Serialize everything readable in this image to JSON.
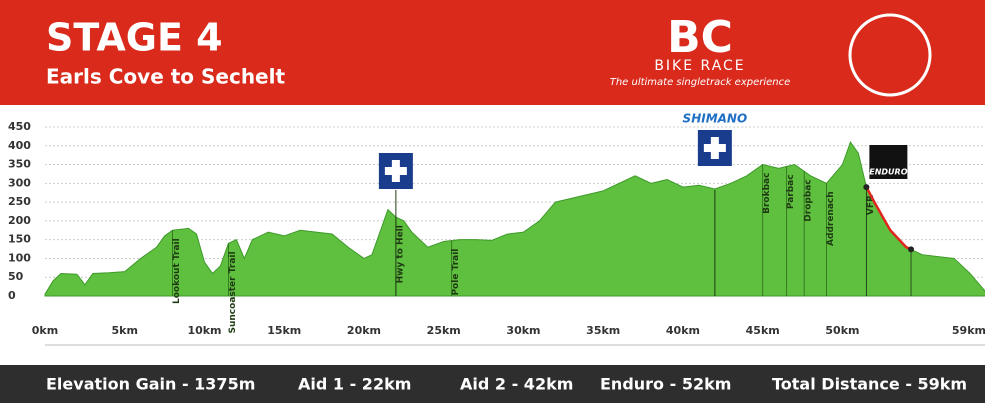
{
  "header": {
    "title": "STAGE 4",
    "subtitle": "Earls Cove to Sechelt",
    "logo": "BC",
    "logo_sub": "BIKE RACE",
    "tagline": "The ultimate singletrack experience"
  },
  "chart_data": {
    "type": "area",
    "color": "#5fbf3f",
    "grid": true,
    "x": [
      0,
      0.5,
      1,
      2,
      2.5,
      3,
      4,
      5,
      6,
      7,
      7.5,
      8,
      9,
      9.5,
      10,
      10.5,
      11,
      11.5,
      12,
      12.5,
      13,
      14,
      15,
      16,
      17,
      18,
      19,
      20,
      20.5,
      21,
      21.5,
      22,
      22.5,
      23,
      24,
      25,
      26,
      27,
      28,
      29,
      30,
      31,
      32,
      33,
      34,
      35,
      36,
      37,
      38,
      39,
      40,
      41,
      42,
      43,
      44,
      45,
      46,
      47,
      48,
      49,
      50,
      50.5,
      51,
      51.5,
      52,
      53,
      54,
      55,
      56,
      57,
      58,
      59
    ],
    "values": [
      5,
      40,
      60,
      58,
      30,
      60,
      62,
      65,
      100,
      130,
      160,
      175,
      180,
      165,
      90,
      60,
      80,
      140,
      150,
      100,
      150,
      170,
      160,
      175,
      170,
      165,
      130,
      100,
      110,
      170,
      230,
      210,
      200,
      170,
      130,
      145,
      150,
      150,
      148,
      165,
      170,
      200,
      250,
      260,
      270,
      280,
      300,
      320,
      300,
      310,
      290,
      295,
      285,
      300,
      320,
      350,
      340,
      350,
      320,
      300,
      350,
      410,
      380,
      290,
      250,
      175,
      130,
      110,
      105,
      100,
      60,
      10
    ],
    "xlim": [
      0,
      59
    ],
    "ylim": [
      0,
      450
    ],
    "yticks": [
      0,
      50,
      100,
      150,
      200,
      250,
      300,
      350,
      400,
      450
    ],
    "xticks": [
      {
        "value": 0,
        "label": "0km"
      },
      {
        "value": 5,
        "label": "5km"
      },
      {
        "value": 10,
        "label": "10km"
      },
      {
        "value": 15,
        "label": "15km"
      },
      {
        "value": 20,
        "label": "20km"
      },
      {
        "value": 25,
        "label": "25km"
      },
      {
        "value": 30,
        "label": "30km"
      },
      {
        "value": 35,
        "label": "35km"
      },
      {
        "value": 40,
        "label": "40km"
      },
      {
        "value": 45,
        "label": "45km"
      },
      {
        "value": 50,
        "label": "50km"
      },
      {
        "value": 59,
        "label": "59km"
      }
    ],
    "annotations": [
      {
        "text": "Lookout Trail",
        "x": 8
      },
      {
        "text": "Suncoaster Trail",
        "x": 11.5
      },
      {
        "text": "Hwy to Hell",
        "x": 22
      },
      {
        "text": "Pole Trail",
        "x": 25.5
      },
      {
        "text": "Brokbac",
        "x": 45
      },
      {
        "text": "Parbac",
        "x": 46.5
      },
      {
        "text": "Dropbac",
        "x": 47.6
      },
      {
        "text": "Addrenach",
        "x": 49
      },
      {
        "text": "VFR",
        "x": 51.5
      }
    ],
    "aid_stations": [
      22,
      42
    ],
    "sponsor": "SHIMANO",
    "enduro": {
      "label": "ENDURO",
      "start": 51.5,
      "end": 54.3,
      "color": "#e0261c"
    }
  },
  "footer": [
    "Elevation Gain - 1375m",
    "Aid 1 - 22km",
    "Aid 2 - 42km",
    "Enduro - 52km",
    "Total Distance - 59km"
  ]
}
